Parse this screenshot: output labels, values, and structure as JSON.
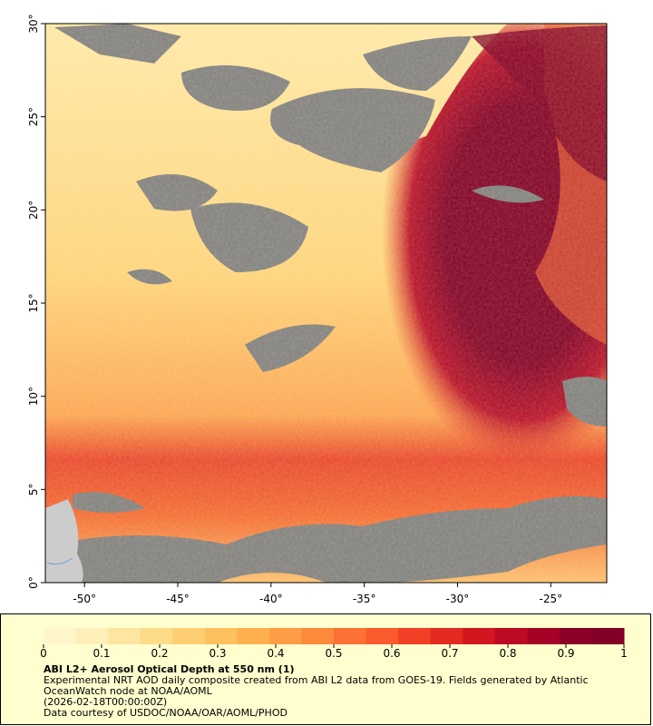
{
  "map": {
    "xlim": [
      -52.1,
      -22
    ],
    "ylim": [
      0,
      30
    ],
    "xticks": [
      {
        "value": -50,
        "label": "-50°"
      },
      {
        "value": -45,
        "label": "-45°"
      },
      {
        "value": -40,
        "label": "-40°"
      },
      {
        "value": -35,
        "label": "-35°"
      },
      {
        "value": -30,
        "label": "-30°"
      },
      {
        "value": -25,
        "label": "-25°"
      }
    ],
    "yticks": [
      {
        "value": 0,
        "label": "0°"
      },
      {
        "value": 5,
        "label": "5°"
      },
      {
        "value": 10,
        "label": "10°"
      },
      {
        "value": 15,
        "label": "15°"
      },
      {
        "value": 20,
        "label": "20°"
      },
      {
        "value": 25,
        "label": "25°"
      },
      {
        "value": 30,
        "label": "30°"
      }
    ]
  },
  "colorbar": {
    "range": [
      0,
      1
    ],
    "ticks": [
      0,
      0.1,
      0.2,
      0.3,
      0.4,
      0.5,
      0.6,
      0.7,
      0.8,
      0.9,
      1
    ],
    "colors": [
      "#fff6cc",
      "#ffefb8",
      "#ffe6a0",
      "#fedb88",
      "#fecf72",
      "#fec160",
      "#feb04f",
      "#fd9d45",
      "#fd8a3b",
      "#fc7134",
      "#fb5a2d",
      "#f14026",
      "#e32a20",
      "#d2161f",
      "#bd0a24",
      "#a50326",
      "#8c0028",
      "#800026"
    ]
  },
  "caption": {
    "title": "ABI L2+ Aerosol Optical Depth at 550 nm (1)",
    "description": "Experimental NRT AOD daily composite created from ABI L2 data from GOES-19. Fields generated by Atlantic OceanWatch node at NOAA/AOML",
    "timestamp": "(2026-02-18T00:00:00Z)",
    "credit": "Data courtesy of USDOC/NOAA/OAR/AOML/PHOD"
  }
}
